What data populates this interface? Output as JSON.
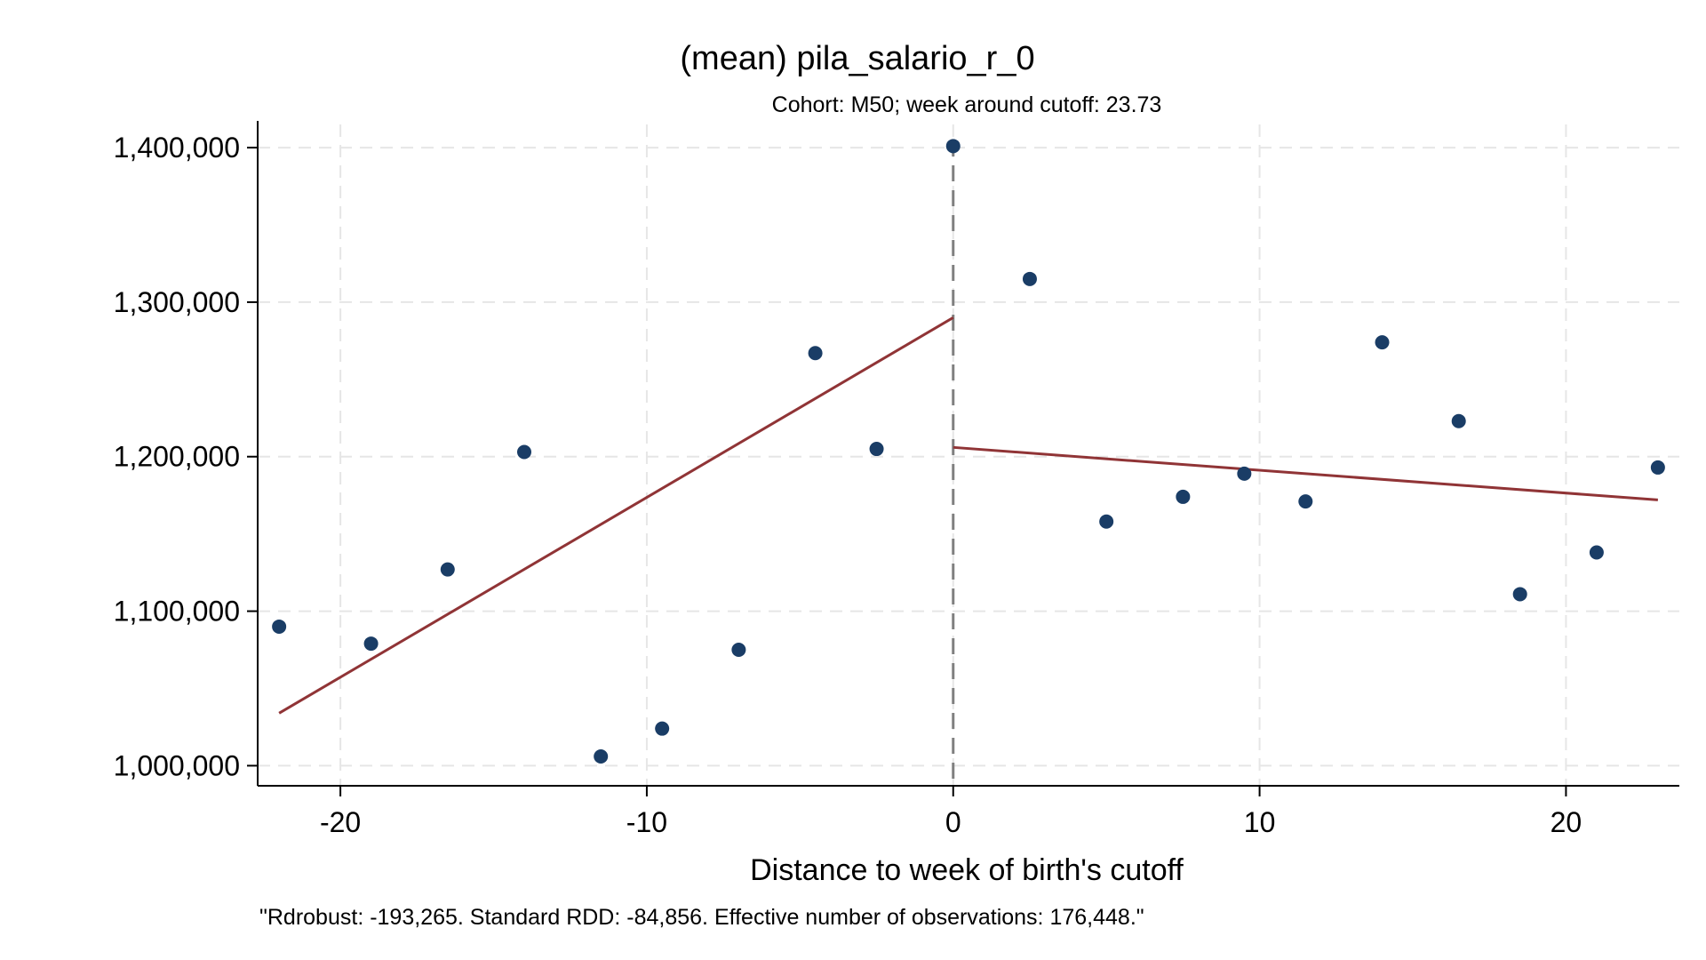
{
  "chart_data": {
    "type": "scatter",
    "title": "(mean) pila_salario_r_0",
    "subtitle": "Cohort: M50; week around cutoff:   23.73",
    "xlabel": "Distance to week of birth's cutoff",
    "ylabel": "",
    "note": "\"Rdrobust: -193,265. Standard RDD: -84,856. Effective number of observations: 176,448.\"",
    "xlim": [
      -22.7,
      23.7
    ],
    "ylim": [
      987000,
      1415000
    ],
    "xticks": [
      {
        "value": -20,
        "label": "-20"
      },
      {
        "value": -10,
        "label": "-10"
      },
      {
        "value": 0,
        "label": "0"
      },
      {
        "value": 10,
        "label": "10"
      },
      {
        "value": 20,
        "label": "20"
      }
    ],
    "yticks": [
      {
        "value": 1000000,
        "label": "1,000,000"
      },
      {
        "value": 1100000,
        "label": "1,100,000"
      },
      {
        "value": 1200000,
        "label": "1,200,000"
      },
      {
        "value": 1300000,
        "label": "1,300,000"
      },
      {
        "value": 1400000,
        "label": "1,400,000"
      }
    ],
    "grid": true,
    "cutoff": 0,
    "points": [
      {
        "x": -22,
        "y": 1090000
      },
      {
        "x": -19,
        "y": 1079000
      },
      {
        "x": -16.5,
        "y": 1127000
      },
      {
        "x": -14,
        "y": 1203000
      },
      {
        "x": -11.5,
        "y": 1006000
      },
      {
        "x": -9.5,
        "y": 1024000
      },
      {
        "x": -7,
        "y": 1075000
      },
      {
        "x": -4.5,
        "y": 1267000
      },
      {
        "x": -2.5,
        "y": 1205000
      },
      {
        "x": 0,
        "y": 1401000
      },
      {
        "x": 2.5,
        "y": 1315000
      },
      {
        "x": 5,
        "y": 1158000
      },
      {
        "x": 7.5,
        "y": 1174000
      },
      {
        "x": 9.5,
        "y": 1189000
      },
      {
        "x": 11.5,
        "y": 1171000
      },
      {
        "x": 14,
        "y": 1274000
      },
      {
        "x": 16.5,
        "y": 1223000
      },
      {
        "x": 18.5,
        "y": 1111000
      },
      {
        "x": 21,
        "y": 1138000
      },
      {
        "x": 23,
        "y": 1193000
      }
    ],
    "fit_lines": [
      {
        "x": [
          -22,
          0
        ],
        "y": [
          1034000,
          1290000
        ]
      },
      {
        "x": [
          0,
          23
        ],
        "y": [
          1206000,
          1172000
        ]
      }
    ],
    "colors": {
      "points": "#1a3d66",
      "fit": "#903436",
      "grid": "#e6e6e6",
      "cutoff": "#808080",
      "axis": "#000000"
    }
  }
}
